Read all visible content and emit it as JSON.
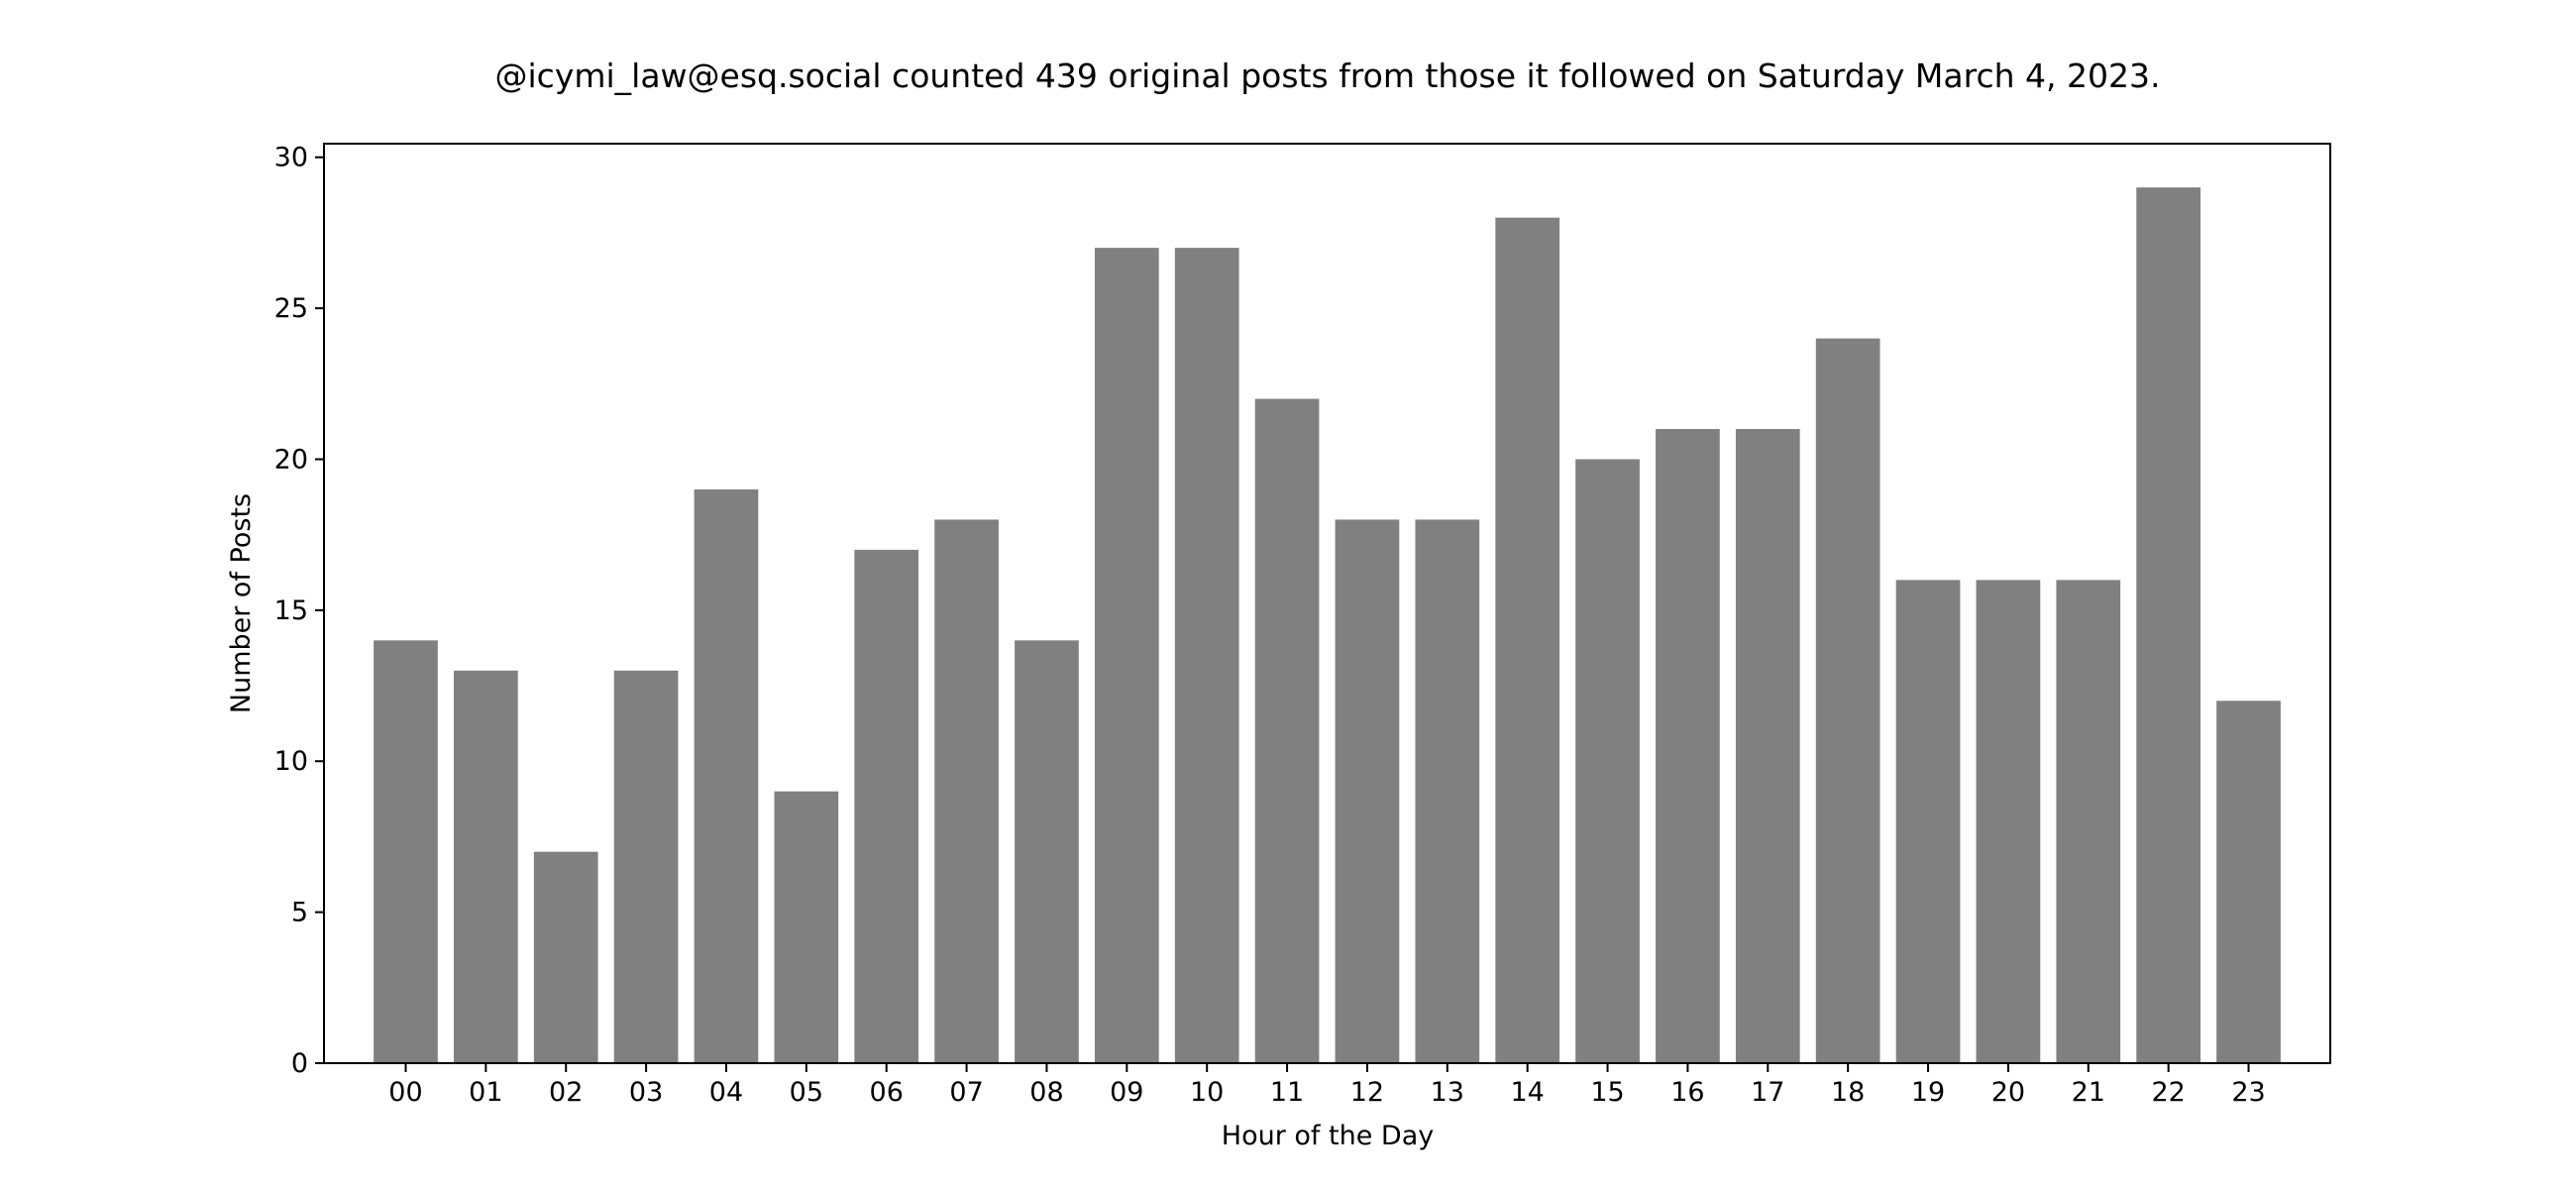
{
  "chart_data": {
    "type": "bar",
    "title": "@icymi_law@esq.social counted 439 original posts from those it followed on Saturday March 4, 2023.",
    "xlabel": "Hour of the Day",
    "ylabel": "Number of Posts",
    "categories": [
      "00",
      "01",
      "02",
      "03",
      "04",
      "05",
      "06",
      "07",
      "08",
      "09",
      "10",
      "11",
      "12",
      "13",
      "14",
      "15",
      "16",
      "17",
      "18",
      "19",
      "20",
      "21",
      "22",
      "23"
    ],
    "values": [
      14,
      13,
      7,
      13,
      19,
      9,
      17,
      18,
      14,
      27,
      27,
      22,
      18,
      18,
      28,
      20,
      21,
      21,
      24,
      16,
      16,
      16,
      29,
      12
    ],
    "ylim": [
      0,
      30.45
    ],
    "yticks": [
      0,
      5,
      10,
      15,
      20,
      25,
      30
    ],
    "bar_color": "#808080",
    "grid": false,
    "legend": "none"
  }
}
